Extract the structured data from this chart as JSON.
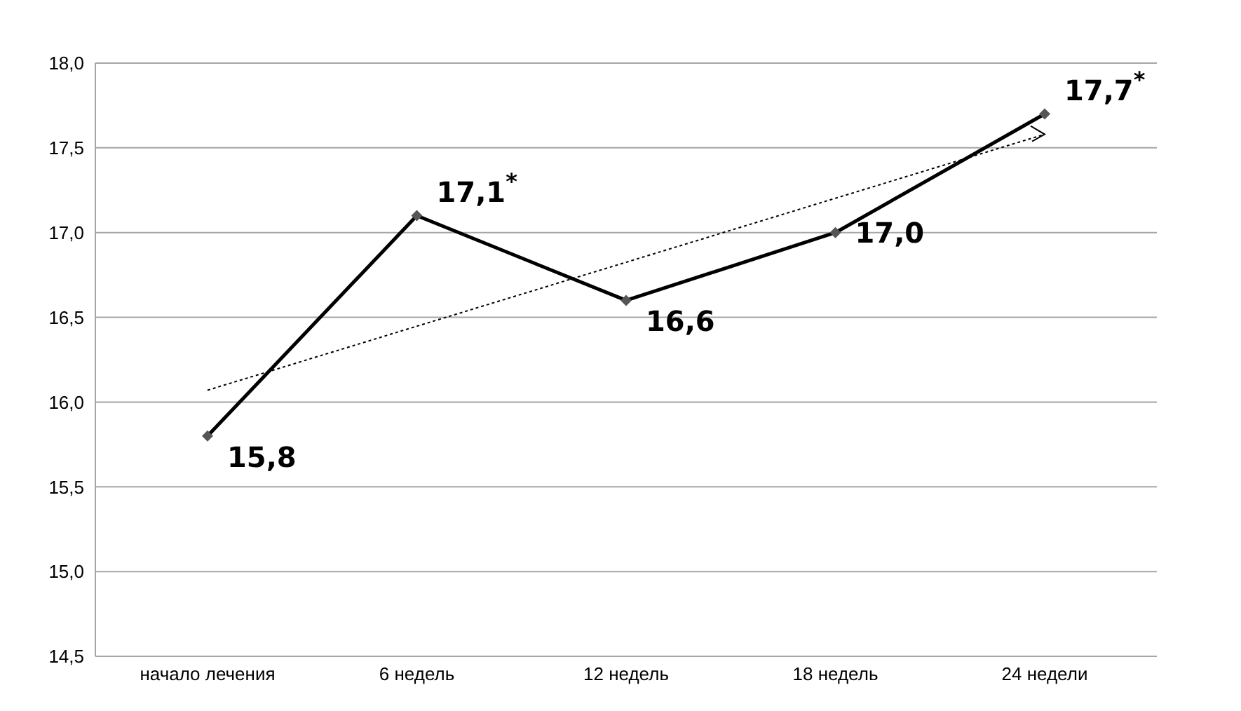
{
  "chart_data": {
    "type": "line",
    "categories": [
      "начало лечения",
      "6 недель",
      "12 недель",
      "18 недель",
      "24 недели"
    ],
    "series": [
      {
        "color": "#000000",
        "values": [
          15.8,
          17.1,
          16.6,
          17.0,
          17.7
        ],
        "value_labels": [
          "15,8",
          "17,1$^{*}$",
          "16,6",
          "17,0",
          "17,7$^{*}$"
        ],
        "marker": "diamond",
        "line_style": "solid"
      },
      {
        "type": "line",
        "color": "#000000",
        "x": [
          "начало лечения",
          "24 недели"
        ],
        "values": [
          16.07,
          17.58
        ],
        "line_style": "dotted"
      }
    ],
    "ylim": [
      14.5,
      18.0
    ],
    "yticks": [
      {
        "value": 14.5,
        "label": "14,5"
      },
      {
        "value": 15.0,
        "label": "15,0"
      },
      {
        "value": 15.5,
        "label": "15,5"
      },
      {
        "value": 16.0,
        "label": "16,0"
      },
      {
        "value": 16.5,
        "label": "16,5"
      },
      {
        "value": 17.0,
        "label": "17,0"
      },
      {
        "value": 17.5,
        "label": "17,5"
      },
      {
        "value": 18.0,
        "label": "18,0"
      }
    ],
    "grid": "y",
    "legend": false
  }
}
